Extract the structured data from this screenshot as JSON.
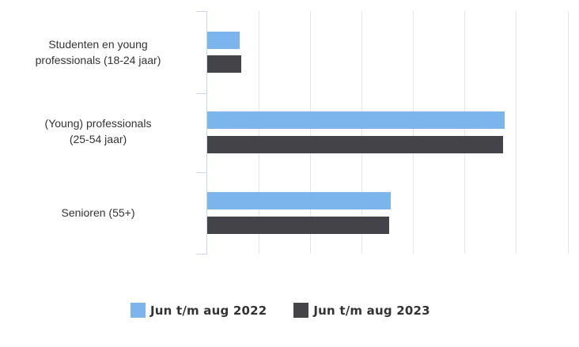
{
  "chart_data": {
    "type": "bar",
    "orientation": "horizontal",
    "title": "",
    "xlabel": "",
    "ylabel": "",
    "categories": [
      "Studenten en young professionals (18-24 jaar)",
      "(Young) professionals (25-54 jaar)",
      "Senioren (55+)"
    ],
    "category_lines": [
      [
        "Studenten en young",
        "professionals (18-24 jaar)"
      ],
      [
        "(Young) professionals",
        "(25-54 jaar)"
      ],
      [
        "Senioren (55+)"
      ]
    ],
    "value_units": "gridline intervals (no axis tick labels shown)",
    "series": [
      {
        "name": "Jun t/m aug 2022",
        "color": "#7cb5ec",
        "values": [
          0.63,
          5.76,
          3.55
        ]
      },
      {
        "name": "Jun t/m aug 2023",
        "color": "#434348",
        "values": [
          0.66,
          5.73,
          3.52
        ]
      }
    ],
    "xlim": [
      0,
      7
    ],
    "grid": true,
    "gridline_count": 8,
    "axis_tick_labels_visible": false,
    "legend_position": "bottom-center"
  },
  "legend": {
    "items": [
      {
        "label": "Jun t/m aug 2022",
        "color": "#7cb5ec"
      },
      {
        "label": "Jun t/m aug 2023",
        "color": "#434348"
      }
    ]
  }
}
